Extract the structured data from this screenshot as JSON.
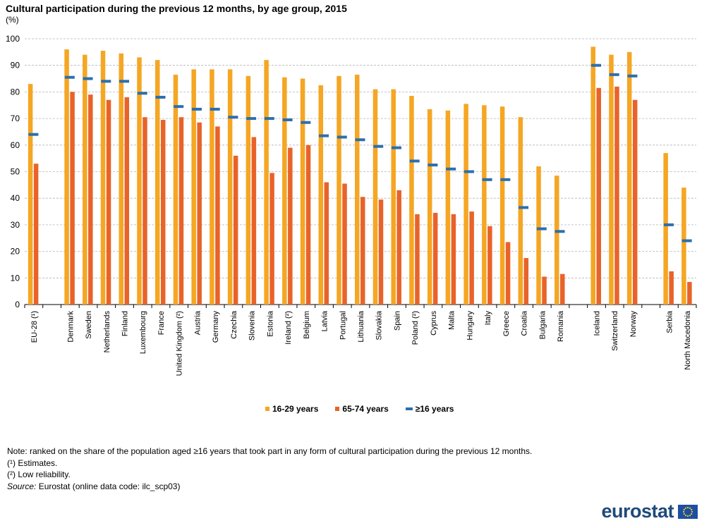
{
  "title": "Cultural participation during the previous 12 months, by age group, 2015",
  "unit": "(%)",
  "colors": {
    "s1": "#f5a623",
    "s2": "#e8632a",
    "s3": "#2c6fad",
    "grid": "#b4b4b4",
    "axis": "#000000"
  },
  "chart_data": {
    "type": "bar",
    "title": "Cultural participation during the previous 12 months, by age group, 2015",
    "ylabel": "(%)",
    "ylim": [
      0,
      100
    ],
    "yticks": [
      0,
      10,
      20,
      30,
      40,
      50,
      60,
      70,
      80,
      90,
      100
    ],
    "grid": true,
    "legend_position": "bottom",
    "categories": [
      "EU-28 (¹)",
      "",
      "Denmark",
      "Sweden",
      "Netherlands",
      "Finland",
      "Luxembourg",
      "France",
      "United Kingdom (²)",
      "Austria",
      "Germany",
      "Czechia",
      "Slovenia",
      "Estonia",
      "Ireland (²)",
      "Belgium",
      "Latvia",
      "Portugal",
      "Lithuania",
      "Slovakia",
      "Spain",
      "Poland (²)",
      "Cyprus",
      "Malta",
      "Hungary",
      "Italy",
      "Greece",
      "Croatia",
      "Bulgaria",
      "Romania",
      "",
      "Iceland",
      "Switzerland",
      "Norway",
      "",
      "Serbia",
      "North Macedonia"
    ],
    "series": [
      {
        "name": "16-29 years",
        "kind": "bar",
        "values": [
          83,
          null,
          96,
          94,
          95.5,
          94.5,
          93,
          92,
          86.5,
          88.5,
          88.5,
          88.5,
          86,
          92,
          85.5,
          85,
          82.5,
          86,
          86.5,
          81,
          81,
          78.5,
          73.5,
          73,
          75.5,
          75,
          74.5,
          70.5,
          52,
          48.5,
          null,
          97,
          94,
          95,
          null,
          57,
          44
        ]
      },
      {
        "name": "65-74 years",
        "kind": "bar",
        "values": [
          53,
          null,
          80,
          79,
          77,
          78,
          70.5,
          69.5,
          70.5,
          68.5,
          67,
          56,
          63,
          49.5,
          59,
          60,
          46,
          45.5,
          40.5,
          39.5,
          43,
          34,
          34.5,
          34,
          35,
          29.5,
          23.5,
          17.5,
          10.5,
          11.5,
          null,
          81.5,
          82,
          77,
          null,
          12.5,
          8.5
        ]
      },
      {
        "name": "≥16 years",
        "kind": "marker",
        "values": [
          64,
          null,
          85.5,
          85,
          84,
          84,
          79.5,
          78,
          74.5,
          73.5,
          73.5,
          70.5,
          70,
          70,
          69.5,
          68.5,
          63.5,
          63,
          62,
          59.5,
          59,
          54,
          52.5,
          51,
          50,
          47,
          47,
          36.5,
          28.5,
          27.5,
          null,
          90,
          86.5,
          86,
          null,
          30,
          24
        ]
      }
    ]
  },
  "legend": {
    "items": [
      "16-29 years",
      "65-74 years",
      "≥16 years"
    ]
  },
  "notes": {
    "line1": "Note: ranked on the share of the population aged ≥16 years that took part in any form of cultural participation during the previous 12 months.",
    "line2": "(¹) Estimates.",
    "line3": "(²) Low reliability.",
    "source_label": "Source:",
    "source_text": " Eurostat (online data code: ilc_scp03)"
  },
  "logo": {
    "text": "eurostat",
    "icon": "eu-flag-icon"
  }
}
